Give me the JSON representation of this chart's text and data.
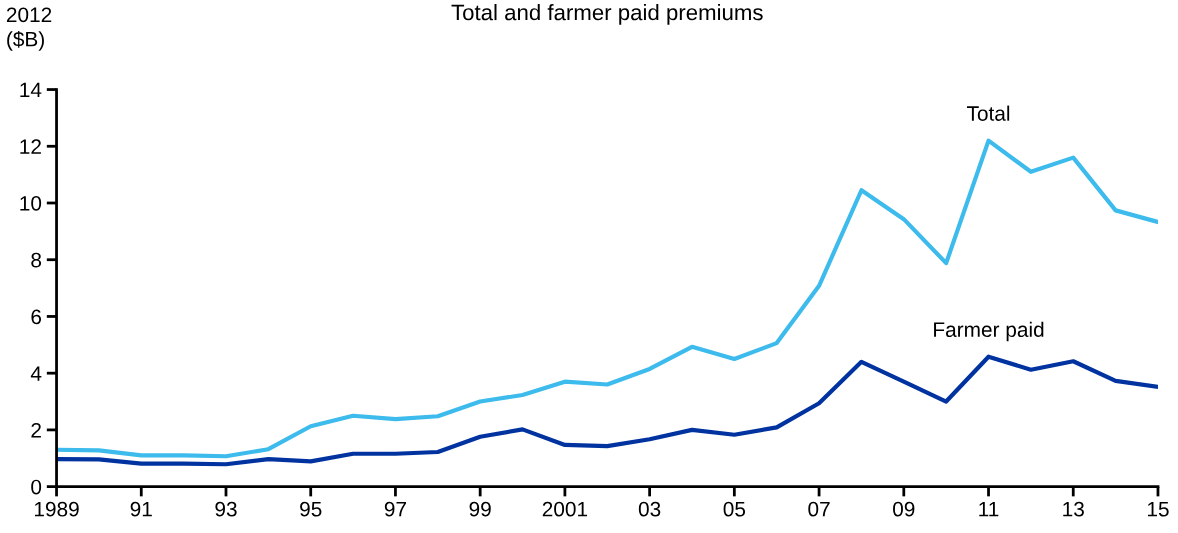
{
  "chart_data": {
    "type": "line",
    "title": "Total and farmer paid premiums",
    "ylabel": "2012\n($B)",
    "x": [
      1989,
      1990,
      1991,
      1992,
      1993,
      1994,
      1995,
      1996,
      1997,
      1998,
      1999,
      2000,
      2001,
      2002,
      2003,
      2004,
      2005,
      2006,
      2007,
      2008,
      2009,
      2010,
      2011,
      2012,
      2013,
      2014,
      2015
    ],
    "series": [
      {
        "name": "Total",
        "color": "#3dbbec",
        "values": [
          1.3,
          1.28,
          1.1,
          1.1,
          1.07,
          1.32,
          2.13,
          2.5,
          2.38,
          2.48,
          3.0,
          3.23,
          3.7,
          3.6,
          4.15,
          4.93,
          4.5,
          5.06,
          7.08,
          10.45,
          9.43,
          7.88,
          12.2,
          11.1,
          11.6,
          9.74,
          9.33
        ]
      },
      {
        "name": "Farmer paid",
        "color": "#0033a0",
        "values": [
          0.97,
          0.96,
          0.81,
          0.81,
          0.79,
          0.97,
          0.89,
          1.16,
          1.16,
          1.22,
          1.76,
          2.02,
          1.47,
          1.43,
          1.67,
          2.0,
          1.83,
          2.09,
          2.94,
          4.4,
          3.7,
          3.0,
          4.58,
          4.12,
          4.42,
          3.73,
          3.52
        ]
      }
    ],
    "xlim": [
      1989,
      2015
    ],
    "xticks": [
      {
        "value": 1989,
        "label": "1989"
      },
      {
        "value": 1991,
        "label": "91"
      },
      {
        "value": 1993,
        "label": "93"
      },
      {
        "value": 1995,
        "label": "95"
      },
      {
        "value": 1997,
        "label": "97"
      },
      {
        "value": 1999,
        "label": "99"
      },
      {
        "value": 2001,
        "label": "2001"
      },
      {
        "value": 2003,
        "label": "03"
      },
      {
        "value": 2005,
        "label": "05"
      },
      {
        "value": 2007,
        "label": "07"
      },
      {
        "value": 2009,
        "label": "09"
      },
      {
        "value": 2011,
        "label": "11"
      },
      {
        "value": 2013,
        "label": "13"
      },
      {
        "value": 2015,
        "label": "15"
      }
    ],
    "ylim": [
      0,
      14
    ],
    "yticks": [
      0,
      2,
      4,
      6,
      8,
      10,
      12,
      14
    ],
    "grid": false,
    "legend": false,
    "marker": "none",
    "line_style": "solid"
  }
}
